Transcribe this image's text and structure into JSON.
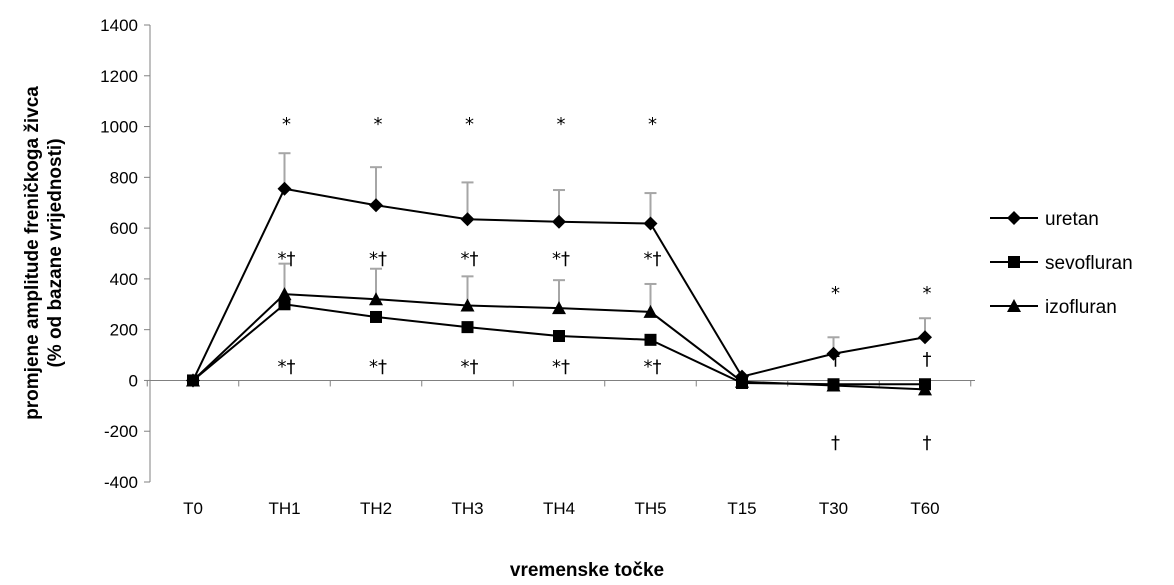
{
  "chart_data": {
    "type": "line",
    "xlabel": "vremenske točke",
    "ylabel_line1": "promjene amplitude freničkoga živca",
    "ylabel_line2": "(% od bazane vrijednosti)",
    "categories": [
      "T0",
      "TH1",
      "TH2",
      "TH3",
      "TH4",
      "TH5",
      "T15",
      "T30",
      "T60"
    ],
    "ylim": [
      -400,
      1400
    ],
    "yticks": [
      -400,
      -200,
      0,
      200,
      400,
      600,
      800,
      1000,
      1200,
      1400
    ],
    "ytick_labels": [
      "-400",
      "-200",
      "0",
      "200",
      "400",
      "600",
      "800",
      "1000",
      "1200",
      "1400"
    ],
    "grid": false,
    "legend_position": "right",
    "series": [
      {
        "name": "uretan",
        "marker": "diamond",
        "values": [
          0,
          755,
          690,
          635,
          625,
          618,
          15,
          105,
          170
        ],
        "errors": [
          0,
          140,
          150,
          145,
          125,
          120,
          0,
          65,
          75
        ]
      },
      {
        "name": "sevofluran",
        "marker": "square",
        "values": [
          0,
          300,
          250,
          210,
          175,
          160,
          -10,
          -15,
          -15
        ],
        "errors": [
          0,
          0,
          0,
          0,
          0,
          0,
          0,
          0,
          0
        ]
      },
      {
        "name": "izofluran",
        "marker": "triangle",
        "values": [
          0,
          340,
          320,
          295,
          285,
          270,
          -5,
          -20,
          -35
        ],
        "errors": [
          0,
          120,
          120,
          115,
          110,
          110,
          0,
          0,
          0
        ]
      }
    ],
    "annotations": [
      {
        "x": "TH1",
        "y": 1010,
        "text": "*"
      },
      {
        "x": "TH2",
        "y": 1010,
        "text": "*"
      },
      {
        "x": "TH3",
        "y": 1010,
        "text": "*"
      },
      {
        "x": "TH4",
        "y": 1010,
        "text": "*"
      },
      {
        "x": "TH5",
        "y": 1010,
        "text": "*"
      },
      {
        "x": "TH1",
        "y": 480,
        "text": "*†"
      },
      {
        "x": "TH2",
        "y": 480,
        "text": "*†"
      },
      {
        "x": "TH3",
        "y": 480,
        "text": "*†"
      },
      {
        "x": "TH4",
        "y": 480,
        "text": "*†"
      },
      {
        "x": "TH5",
        "y": 480,
        "text": "*†"
      },
      {
        "x": "TH1",
        "y": 55,
        "text": "*†"
      },
      {
        "x": "TH2",
        "y": 55,
        "text": "*†"
      },
      {
        "x": "TH3",
        "y": 55,
        "text": "*†"
      },
      {
        "x": "TH4",
        "y": 55,
        "text": "*†"
      },
      {
        "x": "TH5",
        "y": 55,
        "text": "*†"
      },
      {
        "x": "T30",
        "y": 345,
        "text": "*"
      },
      {
        "x": "T60",
        "y": 345,
        "text": "*"
      },
      {
        "x": "T30",
        "y": 85,
        "text": "†"
      },
      {
        "x": "T60",
        "y": 85,
        "text": "†"
      },
      {
        "x": "T30",
        "y": -245,
        "text": "†"
      },
      {
        "x": "T60",
        "y": -245,
        "text": "†"
      }
    ]
  }
}
